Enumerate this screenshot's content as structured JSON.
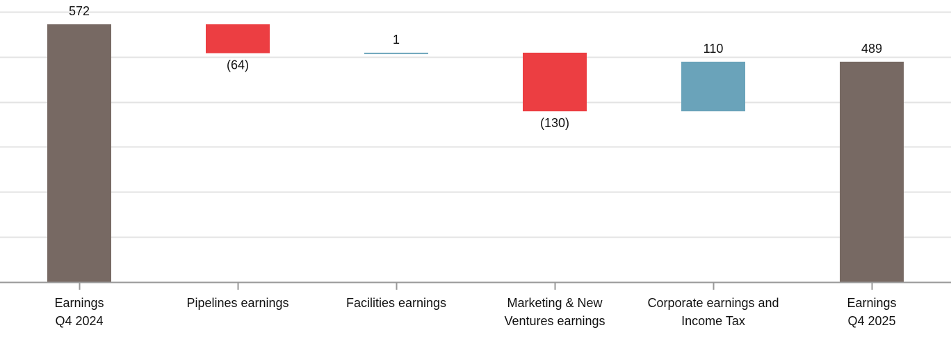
{
  "chart_data": {
    "type": "waterfall",
    "title": "",
    "xlabel": "",
    "ylabel": "",
    "ylim": [
      0,
      600
    ],
    "grid": true,
    "colors": {
      "total": "#776963",
      "decrease": "#ec3e42",
      "increase": "#6aa3ba",
      "grid": "#e3e3e3",
      "axis": "#999999"
    },
    "categories": [
      [
        "Earnings",
        "Q4 2024"
      ],
      [
        "Pipelines earnings"
      ],
      [
        "Facilities earnings"
      ],
      [
        "Marketing & New",
        "Ventures earnings"
      ],
      [
        "Corporate earnings and",
        "Income Tax"
      ],
      [
        "Earnings",
        "Q4 2025"
      ]
    ],
    "values": [
      572,
      -64,
      1,
      -130,
      110,
      489
    ],
    "kinds": [
      "total",
      "decrease",
      "increase",
      "decrease",
      "increase",
      "total"
    ],
    "data_labels": [
      "572",
      "(64)",
      "1",
      "(130)",
      "110",
      "489"
    ]
  }
}
